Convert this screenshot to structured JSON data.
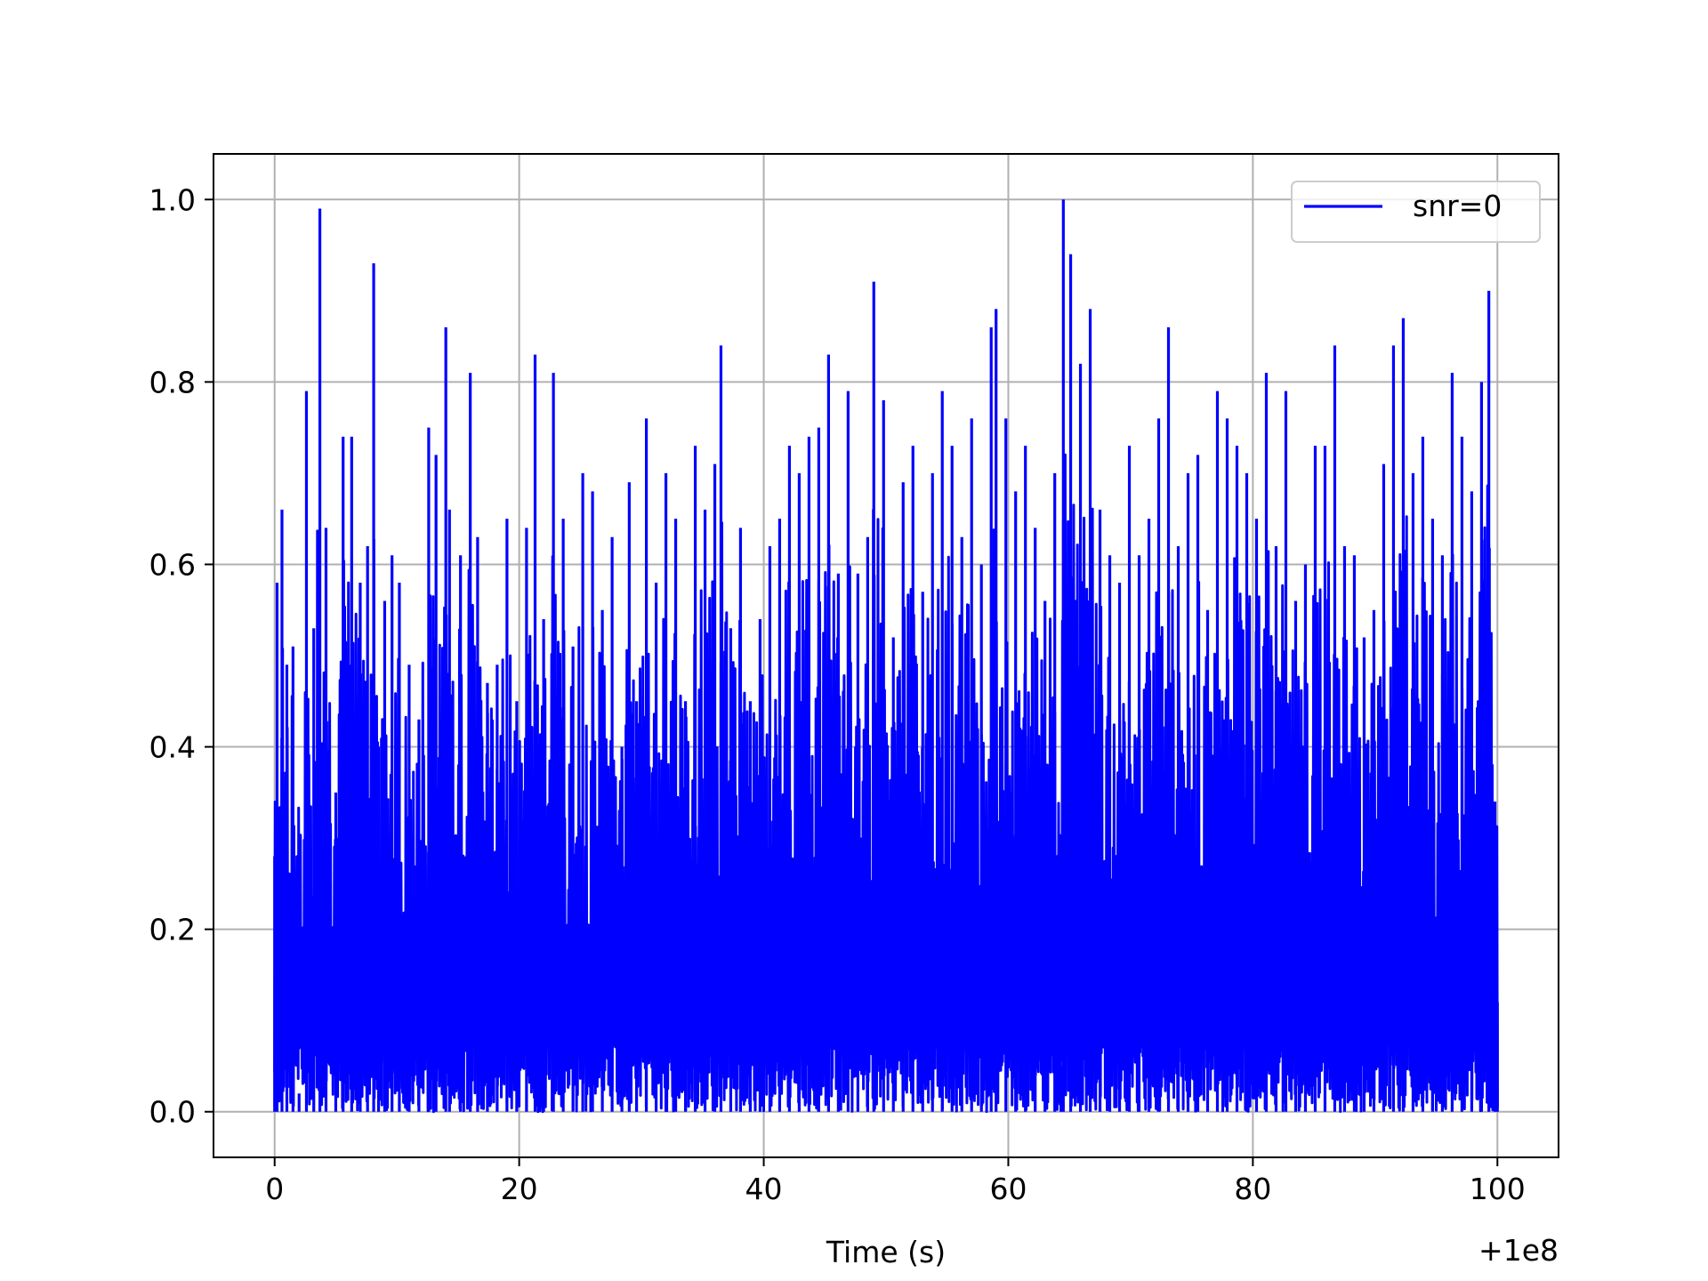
{
  "chart_data": {
    "type": "line",
    "title": "",
    "xlabel": "Time (s)",
    "ylabel": "",
    "x_offset_label": "+1e8",
    "xlim": [
      -5,
      105
    ],
    "ylim": [
      -0.05,
      1.05
    ],
    "x_ticks": [
      {
        "value": 0,
        "label": "0"
      },
      {
        "value": 20,
        "label": "20"
      },
      {
        "value": 40,
        "label": "40"
      },
      {
        "value": 60,
        "label": "60"
      },
      {
        "value": 80,
        "label": "80"
      },
      {
        "value": 100,
        "label": "100"
      }
    ],
    "y_ticks": [
      {
        "value": 0.0,
        "label": "0.0"
      },
      {
        "value": 0.2,
        "label": "0.2"
      },
      {
        "value": 0.4,
        "label": "0.4"
      },
      {
        "value": 0.6,
        "label": "0.6"
      },
      {
        "value": 0.8,
        "label": "0.8"
      },
      {
        "value": 1.0,
        "label": "1.0"
      }
    ],
    "grid": true,
    "legend": {
      "position": "top-right"
    },
    "series": [
      {
        "name": "snr=0",
        "color": "#0000ff",
        "x": [
          0.0,
          0.2,
          0.6,
          1.0,
          1.5,
          2.0,
          2.6,
          3.2,
          3.7,
          4.2,
          5.0,
          5.6,
          6.3,
          7.0,
          7.6,
          8.1,
          8.5,
          9.0,
          9.6,
          10.2,
          11.0,
          11.8,
          12.6,
          13.2,
          14.0,
          14.3,
          15.2,
          16.0,
          16.6,
          17.4,
          18.2,
          19.0,
          19.8,
          20.6,
          21.3,
          22.0,
          22.8,
          23.6,
          24.4,
          25.2,
          26.0,
          26.8,
          27.6,
          28.4,
          29.0,
          29.6,
          30.4,
          31.2,
          32.0,
          32.8,
          33.6,
          34.4,
          35.2,
          36.0,
          36.5,
          37.3,
          38.1,
          38.9,
          39.7,
          40.5,
          41.3,
          42.1,
          42.9,
          43.7,
          44.5,
          45.3,
          46.1,
          46.9,
          47.7,
          48.5,
          49.0,
          49.8,
          50.6,
          51.4,
          52.2,
          53.0,
          53.8,
          54.6,
          55.4,
          56.2,
          57.0,
          57.8,
          58.6,
          59.0,
          59.8,
          60.6,
          61.4,
          62.2,
          63.0,
          63.8,
          64.3,
          64.5,
          65.1,
          65.9,
          66.7,
          67.5,
          68.3,
          69.1,
          69.9,
          70.7,
          71.5,
          72.3,
          73.1,
          73.9,
          74.7,
          75.5,
          76.3,
          77.1,
          77.9,
          78.7,
          79.5,
          80.3,
          81.1,
          81.9,
          82.7,
          83.5,
          84.3,
          85.1,
          85.9,
          86.7,
          87.5,
          88.3,
          89.1,
          89.9,
          90.7,
          91.5,
          92.3,
          93.1,
          93.9,
          94.7,
          95.5,
          96.3,
          97.1,
          97.9,
          98.7,
          99.3,
          99.8,
          100.0
        ],
        "y": [
          0.28,
          0.58,
          0.66,
          0.49,
          0.51,
          0.02,
          0.79,
          0.53,
          0.99,
          0.64,
          0.35,
          0.74,
          0.74,
          0.58,
          0.62,
          0.93,
          0.4,
          0.56,
          0.61,
          0.58,
          0.49,
          0.43,
          0.75,
          0.72,
          0.86,
          0.66,
          0.61,
          0.81,
          0.63,
          0.47,
          0.49,
          0.65,
          0.45,
          0.64,
          0.83,
          0.54,
          0.81,
          0.65,
          0.51,
          0.7,
          0.68,
          0.55,
          0.63,
          0.4,
          0.69,
          0.45,
          0.76,
          0.58,
          0.7,
          0.65,
          0.45,
          0.73,
          0.66,
          0.71,
          0.84,
          0.53,
          0.64,
          0.45,
          0.54,
          0.62,
          0.65,
          0.73,
          0.7,
          0.74,
          0.75,
          0.83,
          0.59,
          0.79,
          0.59,
          0.63,
          0.91,
          0.78,
          0.52,
          0.69,
          0.73,
          0.57,
          0.7,
          0.79,
          0.73,
          0.63,
          0.76,
          0.6,
          0.86,
          0.88,
          0.76,
          0.68,
          0.73,
          0.64,
          0.56,
          0.7,
          0.05,
          1.0,
          0.94,
          0.82,
          0.88,
          0.66,
          0.61,
          0.58,
          0.73,
          0.61,
          0.65,
          0.76,
          0.86,
          0.62,
          0.7,
          0.72,
          0.55,
          0.79,
          0.76,
          0.73,
          0.7,
          0.65,
          0.81,
          0.62,
          0.79,
          0.56,
          0.6,
          0.73,
          0.73,
          0.84,
          0.62,
          0.61,
          0.52,
          0.55,
          0.71,
          0.84,
          0.87,
          0.7,
          0.74,
          0.65,
          0.61,
          0.81,
          0.74,
          0.68,
          0.8,
          0.9,
          0.34,
          0.12
        ]
      }
    ]
  }
}
